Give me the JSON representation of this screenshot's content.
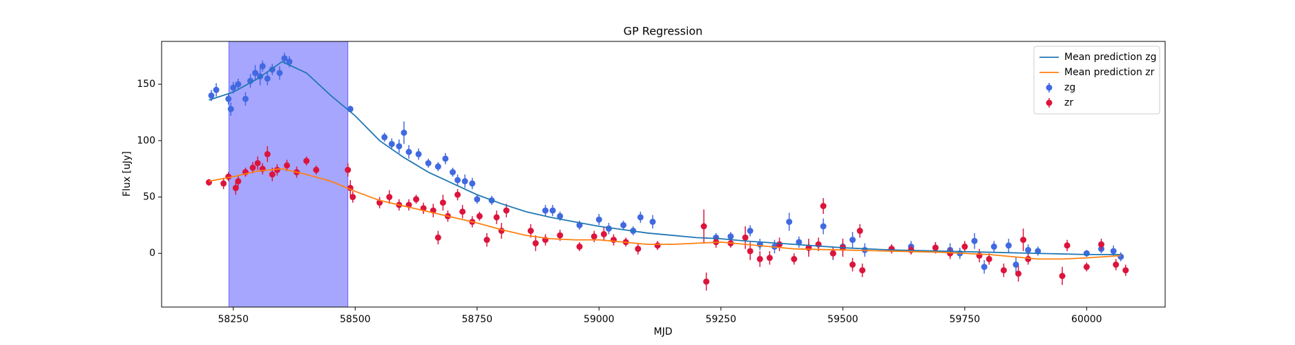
{
  "chart_data": {
    "type": "line",
    "title": "GP Regression",
    "xlabel": "MJD",
    "ylabel": "Flux [uJy]",
    "xlim": [
      58103,
      60161
    ],
    "ylim": [
      -47.6,
      188
    ],
    "xticks": [
      58250,
      58500,
      58750,
      59000,
      59250,
      59500,
      59750,
      60000
    ],
    "yticks": [
      0,
      50,
      100,
      150
    ],
    "span": [
      58241,
      58485
    ],
    "span_color": "#0000ff",
    "legend": "upper right",
    "series": [
      {
        "name": "Mean prediction zg",
        "type": "line",
        "color": "#1f77b4",
        "x": [
          58200,
          58250,
          58300,
          58350,
          58400,
          58450,
          58500,
          58550,
          58600,
          58650,
          58700,
          58750,
          58800,
          58850,
          58900,
          58950,
          59000,
          59050,
          59100,
          59150,
          59200,
          59250,
          59300,
          59400,
          59500,
          59600,
          59700,
          59800,
          59900,
          60000,
          60070
        ],
        "values": [
          136,
          143,
          155,
          170,
          160,
          140,
          122,
          100,
          85,
          72,
          62,
          52,
          44,
          37,
          32,
          28,
          24,
          21,
          18,
          16,
          14,
          13,
          11,
          8,
          5,
          3,
          2,
          1,
          0,
          -1,
          -1
        ]
      },
      {
        "name": "Mean prediction zr",
        "type": "line",
        "color": "#ff7f0e",
        "x": [
          58200,
          58250,
          58300,
          58350,
          58400,
          58450,
          58500,
          58550,
          58600,
          58650,
          58700,
          58750,
          58800,
          58850,
          58900,
          58950,
          59000,
          59050,
          59100,
          59150,
          59200,
          59250,
          59300,
          59350,
          59400,
          59500,
          59600,
          59700,
          59800,
          59850,
          59900,
          59950,
          60000,
          60070
        ],
        "values": [
          64,
          68,
          73,
          75,
          70,
          64,
          55,
          47,
          42,
          37,
          32,
          27,
          21,
          16,
          13,
          12,
          12,
          10,
          8,
          8,
          9,
          10,
          8,
          6,
          4,
          3,
          2,
          1,
          -1,
          -3,
          -5,
          -5,
          -4,
          -2
        ]
      },
      {
        "name": "zg",
        "type": "errorbar",
        "color": "#4169e1",
        "x": [
          58205,
          58215,
          58240,
          58245,
          58250,
          58260,
          58275,
          58285,
          58295,
          58305,
          58310,
          58320,
          58330,
          58345,
          58355,
          58365,
          58490,
          58560,
          58575,
          58590,
          58600,
          58610,
          58630,
          58650,
          58670,
          58685,
          58700,
          58710,
          58725,
          58740,
          58750,
          58780,
          58890,
          58905,
          58920,
          58960,
          59000,
          59020,
          59050,
          59070,
          59085,
          59110,
          59240,
          59270,
          59310,
          59330,
          59360,
          59390,
          59410,
          59430,
          59460,
          59480,
          59500,
          59520,
          59545,
          59600,
          59640,
          59690,
          59720,
          59740,
          59770,
          59790,
          59810,
          59840,
          59855,
          59880,
          59900,
          60000,
          60030,
          60055,
          60070
        ],
        "values": [
          140,
          145,
          137,
          128,
          147,
          150,
          137,
          153,
          160,
          157,
          166,
          155,
          163,
          160,
          173,
          170,
          128,
          103,
          97,
          95,
          107,
          90,
          88,
          80,
          77,
          84,
          72,
          65,
          64,
          62,
          48,
          47,
          38,
          38,
          33,
          25,
          30,
          22,
          25,
          20,
          32,
          28,
          14,
          15,
          20,
          8,
          6,
          28,
          10,
          5,
          24,
          0,
          6,
          12,
          3,
          4,
          6,
          5,
          3,
          0,
          11,
          -12,
          6,
          7,
          -10,
          3,
          2,
          0,
          4,
          2,
          -3
        ],
        "errors": [
          5,
          6,
          5,
          6,
          5,
          5,
          6,
          6,
          7,
          8,
          5,
          6,
          5,
          6,
          5,
          5,
          3,
          4,
          5,
          6,
          10,
          6,
          5,
          4,
          4,
          5,
          4,
          5,
          6,
          5,
          4,
          4,
          5,
          5,
          4,
          4,
          5,
          5,
          4,
          4,
          5,
          6,
          4,
          4,
          5,
          5,
          6,
          8,
          5,
          5,
          7,
          6,
          5,
          7,
          6,
          4,
          5,
          5,
          6,
          5,
          7,
          6,
          5,
          6,
          7,
          5,
          4,
          3,
          4,
          5,
          4
        ]
      },
      {
        "name": "zr",
        "type": "errorbar",
        "color": "#dc143c",
        "x": [
          58200,
          58230,
          58240,
          58255,
          58260,
          58275,
          58290,
          58300,
          58310,
          58320,
          58330,
          58340,
          58360,
          58380,
          58400,
          58420,
          58485,
          58490,
          58495,
          58550,
          58570,
          58590,
          58610,
          58625,
          58640,
          58660,
          58670,
          58680,
          58690,
          58710,
          58720,
          58740,
          58755,
          58770,
          58790,
          58800,
          58810,
          58860,
          58870,
          58890,
          58920,
          58960,
          58990,
          59010,
          59030,
          59055,
          59080,
          59120,
          59215,
          59220,
          59240,
          59270,
          59300,
          59310,
          59330,
          59350,
          59370,
          59400,
          59430,
          59450,
          59460,
          59480,
          59500,
          59520,
          59535,
          59540,
          59600,
          59640,
          59690,
          59720,
          59750,
          59780,
          59800,
          59830,
          59860,
          59870,
          59880,
          59950,
          59960,
          60000,
          60030,
          60060,
          60080
        ],
        "values": [
          63,
          62,
          68,
          58,
          64,
          72,
          76,
          80,
          75,
          88,
          70,
          74,
          78,
          72,
          82,
          74,
          74,
          58,
          50,
          45,
          50,
          43,
          43,
          48,
          40,
          38,
          14,
          45,
          33,
          52,
          37,
          28,
          33,
          12,
          32,
          20,
          38,
          20,
          9,
          12,
          16,
          6,
          15,
          17,
          12,
          10,
          4,
          7,
          24,
          -25,
          10,
          9,
          14,
          2,
          -5,
          -4,
          8,
          -5,
          5,
          8,
          42,
          0,
          5,
          -10,
          20,
          -15,
          4,
          3,
          5,
          0,
          6,
          -2,
          -5,
          -15,
          -18,
          12,
          -5,
          -20,
          7,
          -12,
          8,
          -10,
          -15
        ],
        "errors": [
          3,
          5,
          4,
          6,
          5,
          4,
          5,
          6,
          5,
          7,
          6,
          5,
          5,
          5,
          4,
          4,
          6,
          7,
          5,
          5,
          6,
          5,
          5,
          4,
          5,
          6,
          6,
          7,
          5,
          5,
          6,
          5,
          4,
          6,
          6,
          7,
          6,
          6,
          7,
          5,
          5,
          4,
          5,
          6,
          5,
          4,
          5,
          4,
          15,
          8,
          5,
          4,
          10,
          8,
          7,
          6,
          6,
          5,
          8,
          6,
          7,
          5,
          8,
          6,
          6,
          6,
          4,
          4,
          5,
          5,
          5,
          6,
          5,
          6,
          7,
          10,
          5,
          8,
          5,
          4,
          5,
          5,
          5
        ]
      }
    ]
  }
}
